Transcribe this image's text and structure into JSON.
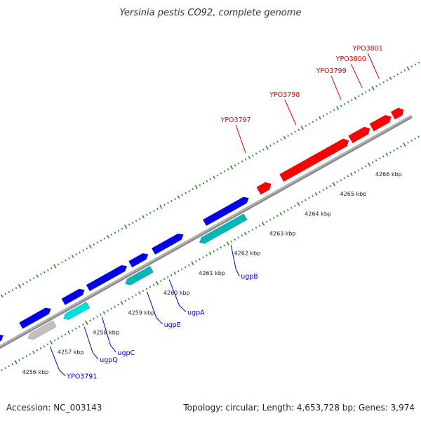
{
  "title": "Yersinia pestis CO92, complete genome",
  "footer": {
    "accession": "Accession: NC_003143",
    "summary": "Topology: circular; Length: 4,653,728 bp; Genes: 3,974"
  },
  "colors": {
    "red_gene": "#ff0000",
    "blue_gene": "#0000ee",
    "cyan_gene": "#00e0e0",
    "teal_gene": "#00b8b8",
    "grey_gene": "#c0c0c0",
    "backbone": "#888888",
    "tick": "#2a8a2a",
    "red_label": "#dd0000",
    "blue_label": "#0000cc"
  },
  "scale": {
    "unit": "kbp",
    "ticks": [
      {
        "kbp": 4256,
        "label": "4256 kbp"
      },
      {
        "kbp": 4257,
        "label": "4257 kbp"
      },
      {
        "kbp": 4258,
        "label": "4258 kbp"
      },
      {
        "kbp": 4259,
        "label": "4259 kbp"
      },
      {
        "kbp": 4260,
        "label": "4260 kbp"
      },
      {
        "kbp": 4261,
        "label": "4261 kbp"
      },
      {
        "kbp": 4262,
        "label": "4262 kbp"
      },
      {
        "kbp": 4263,
        "label": "4263 kbp"
      },
      {
        "kbp": 4264,
        "label": "4264 kbp"
      },
      {
        "kbp": 4265,
        "label": "4265 kbp"
      },
      {
        "kbp": 4266,
        "label": "4266 kbp"
      }
    ]
  },
  "genes": [
    {
      "id": "g1",
      "name": "",
      "track": "forward-inner",
      "color": "blue_gene",
      "start": 4255.65,
      "end": 4256.05
    },
    {
      "id": "g2",
      "name": "",
      "track": "forward-inner",
      "color": "blue_gene",
      "start": 4256.55,
      "end": 4257.4
    },
    {
      "id": "g3",
      "name": "",
      "track": "forward-inner",
      "color": "blue_gene",
      "start": 4257.75,
      "end": 4258.35
    },
    {
      "id": "g4",
      "name": "",
      "track": "forward-inner",
      "color": "blue_gene",
      "start": 4258.45,
      "end": 4259.55
    },
    {
      "id": "g5",
      "name": "",
      "track": "forward-inner",
      "color": "blue_gene",
      "start": 4259.65,
      "end": 4260.15
    },
    {
      "id": "g6",
      "name": "",
      "track": "forward-inner",
      "color": "blue_gene",
      "start": 4260.3,
      "end": 4261.15
    },
    {
      "id": "g7",
      "name": "",
      "track": "forward-inner",
      "color": "blue_gene",
      "start": 4261.75,
      "end": 4263.0
    },
    {
      "id": "g8",
      "name": "YPO3791",
      "track": "reverse",
      "color": "grey_gene",
      "start": 4256.55,
      "end": 4257.3
    },
    {
      "id": "g9",
      "name": "ugpQ",
      "track": "reverse",
      "color": "cyan_gene",
      "start": 4257.55,
      "end": 4258.25
    },
    {
      "id": "g10",
      "name": "ugpC",
      "track": "reverse",
      "color": "",
      "start": 4258.4,
      "end": 4258.4
    },
    {
      "id": "g11",
      "name": "ugpE",
      "track": "reverse",
      "color": "teal_gene",
      "start": 4259.3,
      "end": 4260.05
    },
    {
      "id": "g12",
      "name": "ugpA",
      "track": "reverse",
      "color": "",
      "start": 4260.3,
      "end": 4260.3
    },
    {
      "id": "g13",
      "name": "ugpB",
      "track": "reverse",
      "color": "teal_gene",
      "start": 4261.4,
      "end": 4262.7
    },
    {
      "id": "g14",
      "name": "YPO3797",
      "track": "forward-outer",
      "color": "red_gene",
      "start": 4263.3,
      "end": 4263.65
    },
    {
      "id": "g15",
      "name": "YPO3798",
      "track": "forward-outer",
      "color": "red_gene",
      "start": 4263.95,
      "end": 4265.85
    },
    {
      "id": "g16",
      "name": "YPO3799",
      "track": "forward-outer",
      "color": "red_gene",
      "start": 4265.9,
      "end": 4266.45
    },
    {
      "id": "g17",
      "name": "YPO3800",
      "track": "forward-outer",
      "color": "red_gene",
      "start": 4266.5,
      "end": 4267.05
    },
    {
      "id": "g18",
      "name": "YPO3801",
      "track": "forward-outer",
      "color": "red_gene",
      "start": 4267.1,
      "end": 4267.4
    }
  ]
}
